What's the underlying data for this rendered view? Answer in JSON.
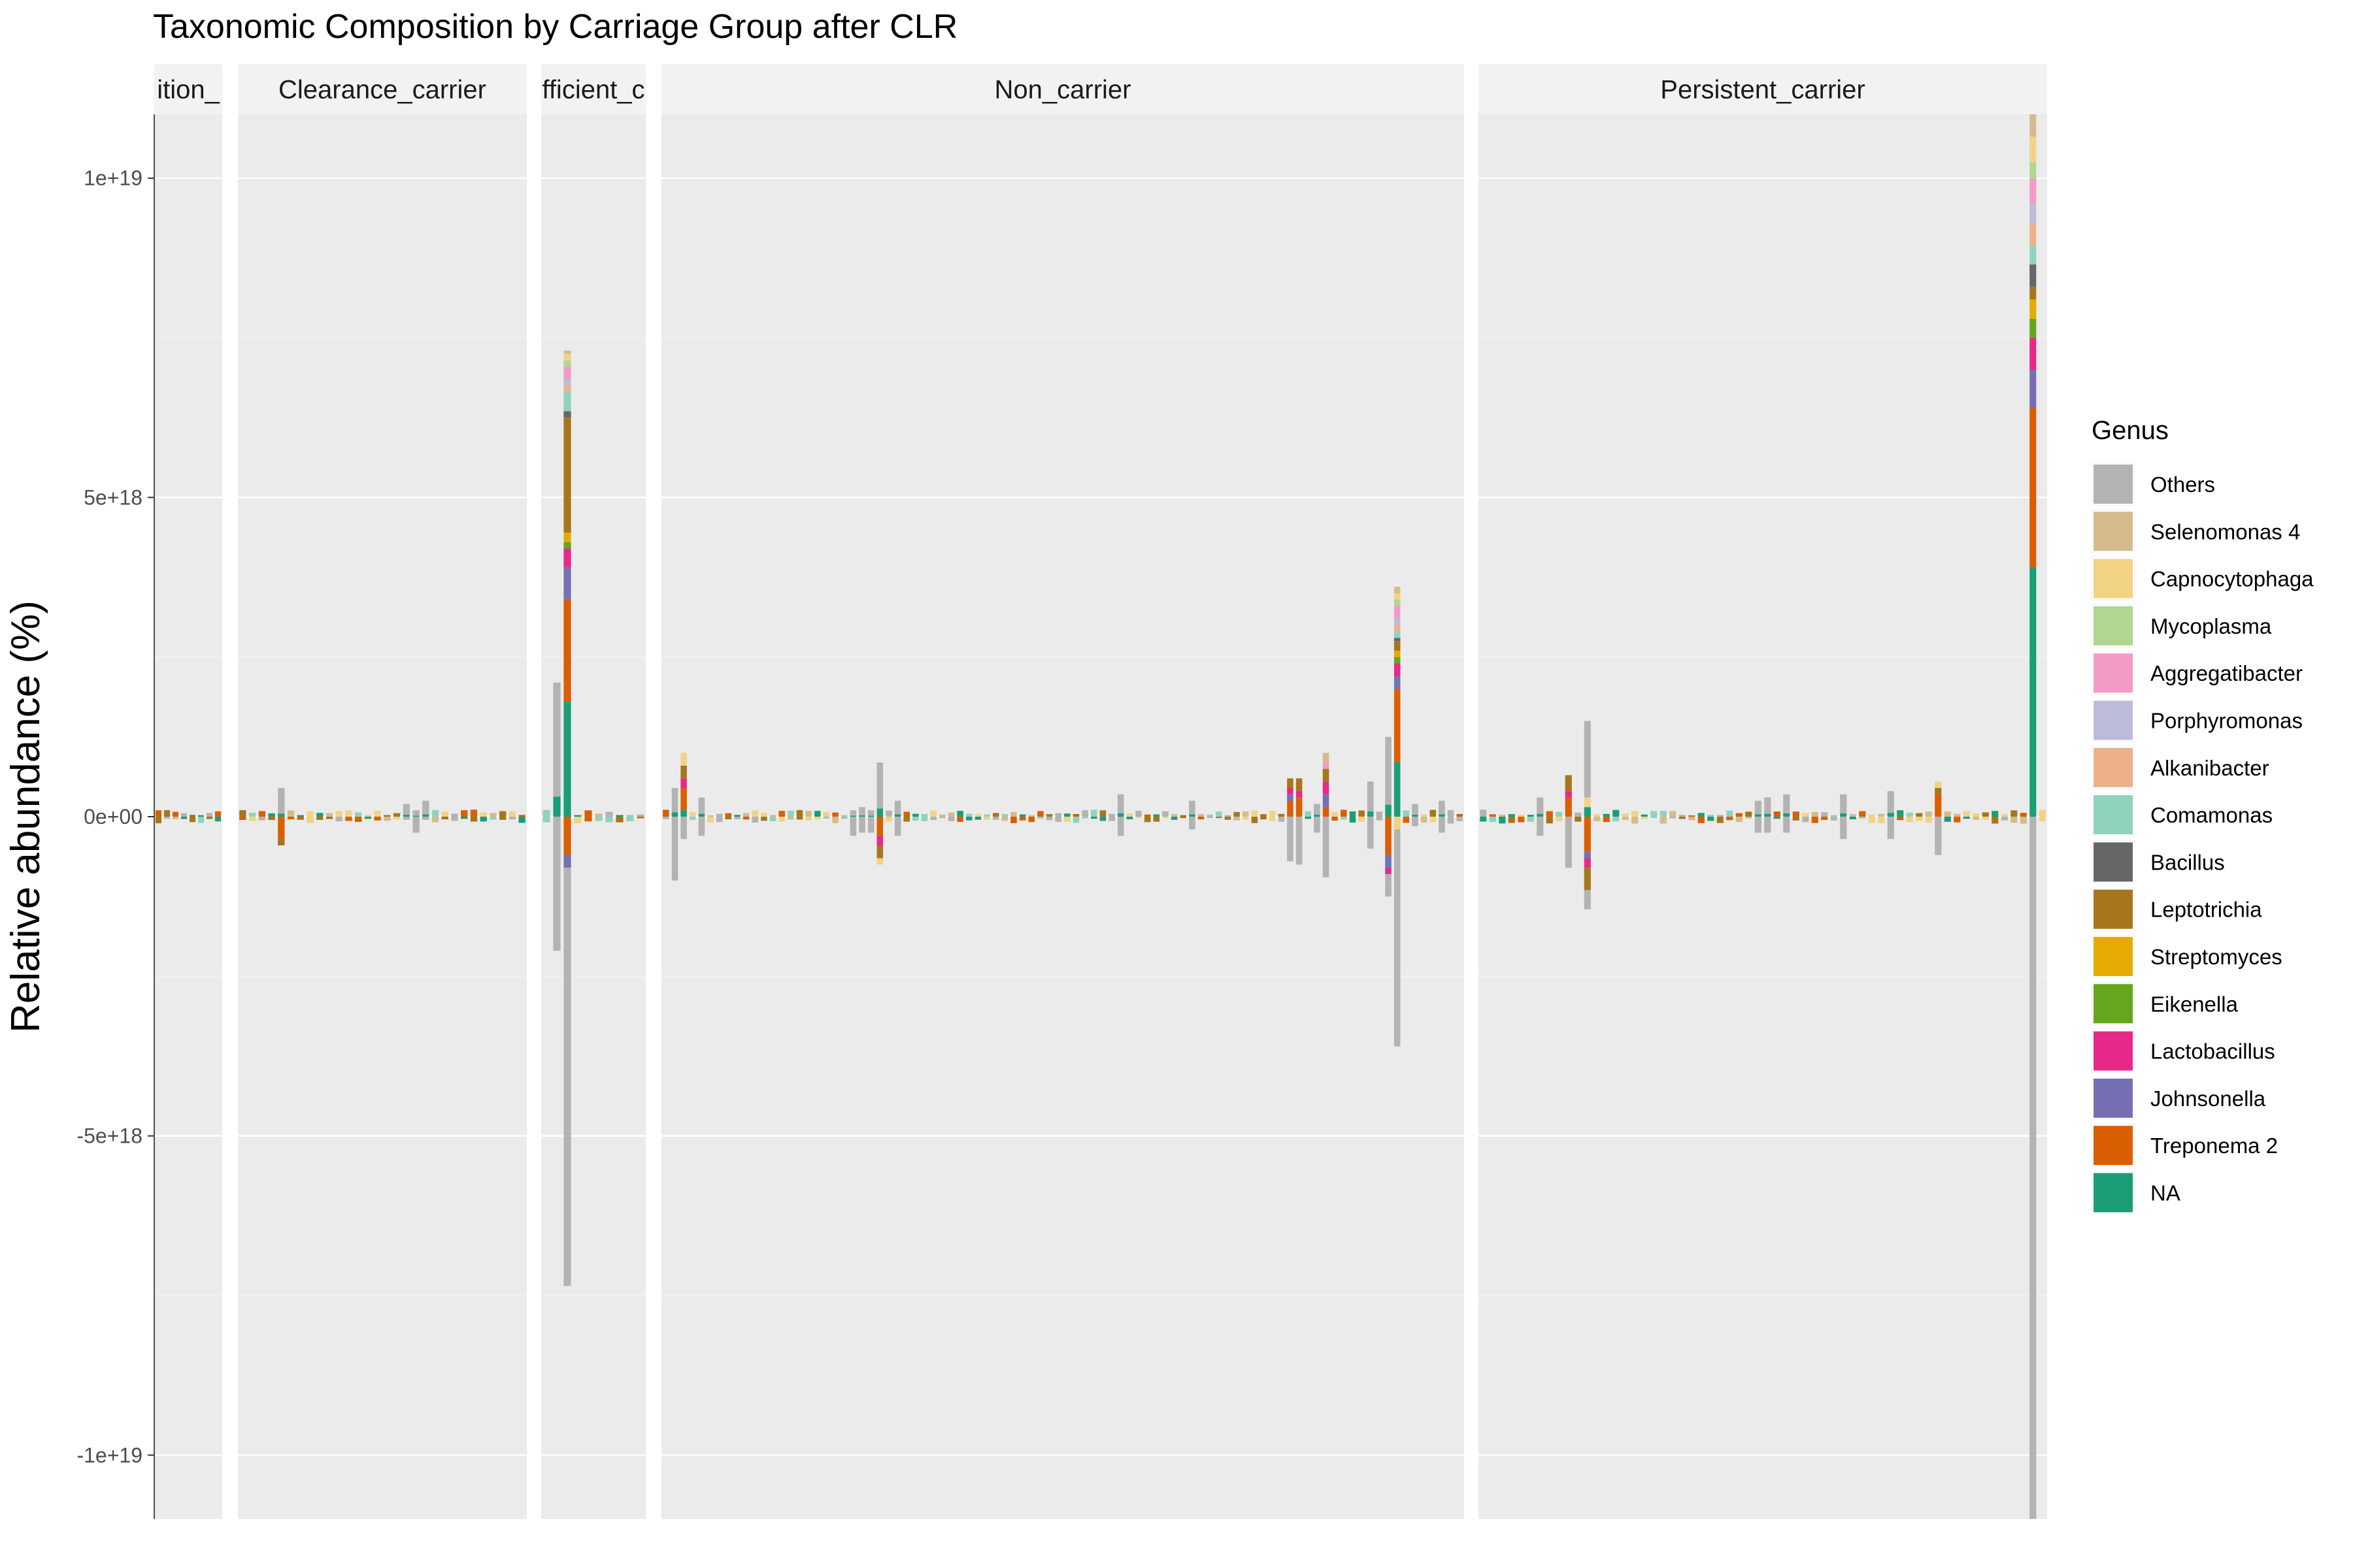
{
  "chart_data": {
    "type": "bar",
    "stacked": true,
    "title": "Taxonomic Composition by Carriage Group after CLR",
    "xlabel": "",
    "ylabel": "Relative abundance (%)",
    "ylim": [
      -1.1e+19,
      1.1e+19
    ],
    "y_ticks": [
      {
        "value": 1e+19,
        "label": "1e+19"
      },
      {
        "value": 5e+18,
        "label": "5e+18"
      },
      {
        "value": 0,
        "label": "0e+00"
      },
      {
        "value": -5e+18,
        "label": "-5e+18"
      },
      {
        "value": -1e+19,
        "label": "-1e+19"
      }
    ],
    "grid": true,
    "legend": {
      "position": "right",
      "title": "Genus",
      "entries": [
        {
          "name": "Others",
          "color": "#B3B3B3"
        },
        {
          "name": "Selenomonas 4",
          "color": "#D4BB8D"
        },
        {
          "name": "Capnocytophaga",
          "color": "#F2D384"
        },
        {
          "name": "Mycoplasma",
          "color": "#B3D593"
        },
        {
          "name": "Aggregatibacter",
          "color": "#F49AC7"
        },
        {
          "name": "Porphyromonas",
          "color": "#BDBBDA"
        },
        {
          "name": "Alkanibacter",
          "color": "#EEB088"
        },
        {
          "name": "Comamonas",
          "color": "#8FD3BF"
        },
        {
          "name": "Bacillus",
          "color": "#666666"
        },
        {
          "name": "Leptotrichia",
          "color": "#A6761D"
        },
        {
          "name": "Streptomyces",
          "color": "#E6AB02"
        },
        {
          "name": "Eikenella",
          "color": "#66A61E"
        },
        {
          "name": "Lactobacillus",
          "color": "#E7298A"
        },
        {
          "name": "Johnsonella",
          "color": "#7570B3"
        },
        {
          "name": "Treponema 2",
          "color": "#D95F02"
        },
        {
          "name": "NA",
          "color": "#1B9E77"
        }
      ]
    },
    "facets": [
      {
        "label": "Acquisition_carrier",
        "strip_text": "ition_",
        "n_samples": 8,
        "highlights": []
      },
      {
        "label": "Clearance_carrier",
        "strip_text": "Clearance_carrier",
        "n_samples": 30,
        "highlights": [
          {
            "index": 4,
            "pos": 4.5e+17,
            "neg": -4.5e+17,
            "pos_seg": {
              "NA": 5e+16,
              "Others": 4e+17
            },
            "neg_seg": {
              "Treponema 2": -3.5e+17,
              "Leptotrichia": -1e+17
            }
          },
          {
            "index": 17,
            "pos": 2e+17,
            "neg": -5e+16
          },
          {
            "index": 18,
            "pos": 1e+17,
            "neg": -2.5e+17
          },
          {
            "index": 19,
            "pos": 2.5e+17,
            "neg": -5e+16
          }
        ]
      },
      {
        "label": "Insufficient_carrier",
        "strip_text": "fficient_c",
        "n_samples": 10,
        "highlights": [
          {
            "index": 1,
            "pos": 2.1e+18,
            "neg": -2.1e+18
          },
          {
            "index": 2,
            "pos": 7.3e+18,
            "neg": -7.35e+18,
            "pos_seg": {
              "NA": 1.8e+18,
              "Treponema 2": 1.6e+18,
              "Johnsonella": 5e+17,
              "Lactobacillus": 3e+17,
              "Eikenella": 1e+17,
              "Streptomyces": 1.5e+17,
              "Leptotrichia": 1.8e+18,
              "Bacillus": 1e+17,
              "Comamonas": 3e+17,
              "Alkanibacter": 1e+17,
              "Porphyromonas": 1e+17,
              "Aggregatibacter": 2e+17,
              "Mycoplasma": 1e+17,
              "Capnocytophaga": 1e+17,
              "Selenomonas 4": 5e+16
            },
            "neg_seg": {
              "Treponema 2": -6e+17,
              "Johnsonella": -2e+17,
              "Others": -6.55e+18
            }
          }
        ]
      },
      {
        "label": "Non_carrier",
        "strip_text": "Non_carrier",
        "n_samples": 90,
        "highlights": [
          {
            "index": 1,
            "pos": 4.5e+17,
            "neg": -1e+18
          },
          {
            "index": 2,
            "pos": 1e+18,
            "neg": -3.5e+17,
            "pos_seg": {
              "NA": 1e+17,
              "Treponema 2": 3.5e+17,
              "Lactobacillus": 1.5e+17,
              "Leptotrichia": 2e+17,
              "Capnocytophaga": 2e+17
            }
          },
          {
            "index": 4,
            "pos": 3e+17,
            "neg": -3e+17
          },
          {
            "index": 21,
            "pos": 1e+17,
            "neg": -3e+17
          },
          {
            "index": 22,
            "pos": 1.5e+17,
            "neg": -2.5e+17
          },
          {
            "index": 23,
            "pos": 1e+17,
            "neg": -2.5e+17
          },
          {
            "index": 24,
            "pos": 8.5e+17,
            "neg": -8.5e+17,
            "neg_seg": {
              "Treponema 2": -3e+17,
              "Lactobacillus": -1.5e+17,
              "Leptotrichia": -2e+17,
              "Capnocytophaga": -1e+17
            }
          },
          {
            "index": 26,
            "pos": 2.5e+17,
            "neg": -3e+17
          },
          {
            "index": 51,
            "pos": 3.5e+17,
            "neg": -3e+17
          },
          {
            "index": 59,
            "pos": 2.5e+17,
            "neg": -2e+17
          },
          {
            "index": 70,
            "pos": 6e+17,
            "neg": -7e+17,
            "pos_seg": {
              "Treponema 2": 2.5e+17,
              "Leptotrichia": 1.5e+17,
              "Lactobacillus": 1e+17,
              "Johnsonella": 1e+17
            }
          },
          {
            "index": 71,
            "pos": 7e+17,
            "neg": -7.5e+17,
            "pos_seg": {
              "Treponema 2": 3e+17,
              "Leptotrichia": 2e+17,
              "Lactobacillus": 1e+17
            }
          },
          {
            "index": 73,
            "pos": 2e+17,
            "neg": -2.5e+17
          },
          {
            "index": 74,
            "pos": 1e+18,
            "neg": -9.5e+17,
            "pos_seg": {
              "Treponema 2": 1.5e+17,
              "Lactobacillus": 2e+17,
              "Johnsonella": 2e+17,
              "Leptotrichia": 2e+17,
              "Aggregatibacter": 1e+17,
              "Selenomonas 4": 1.5e+17
            }
          },
          {
            "index": 79,
            "pos": 5.5e+17,
            "neg": -5e+17
          },
          {
            "index": 81,
            "pos": 1.25e+18,
            "neg": -1.25e+18,
            "neg_seg": {
              "Treponema 2": -6e+17,
              "Johnsonella": -2e+17,
              "Lactobacillus": -1e+17,
              "Others": -3.5e+17
            }
          },
          {
            "index": 82,
            "pos": 3.6e+18,
            "neg": -3.6e+18,
            "pos_seg": {
              "NA": 8.5e+17,
              "Treponema 2": 1.15e+18,
              "Johnsonella": 2e+17,
              "Lactobacillus": 2e+17,
              "Eikenella": 1e+17,
              "Streptomyces": 1e+17,
              "Leptotrichia": 1.5e+17,
              "Bacillus": 5e+16,
              "Comamonas": 1e+17,
              "Alkanibacter": 1e+17,
              "Porphyromonas": 1e+17,
              "Aggregatibacter": 2e+17,
              "Mycoplasma": 1e+17,
              "Capnocytophaga": 1e+17,
              "Selenomonas 4": 1e+17
            },
            "neg_seg": {
              "Capnocytophaga": -2e+17,
              "Others": -3.4e+18
            }
          },
          {
            "index": 84,
            "pos": 2e+17,
            "neg": -1.5e+17
          },
          {
            "index": 87,
            "pos": 2.5e+17,
            "neg": -2.5e+17
          }
        ]
      },
      {
        "label": "Persistent_carrier",
        "strip_text": "Persistent_carrier",
        "n_samples": 60,
        "highlights": [
          {
            "index": 6,
            "pos": 3e+17,
            "neg": -3e+17
          },
          {
            "index": 9,
            "pos": 7.5e+17,
            "neg": -8e+17,
            "pos_seg": {
              "Treponema 2": 3e+17,
              "Leptotrichia": 2.5e+17,
              "Lactobacillus": 1e+17
            }
          },
          {
            "index": 11,
            "pos": 1.5e+18,
            "neg": -1.5e+18,
            "pos_seg": {
              "NA": 1.5e+17,
              "Capnocytophaga": 1.5e+17,
              "Others": 1.2e+18
            },
            "neg_seg": {
              "Treponema 2": -5.5e+17,
              "Lactobacillus": -1.5e+17,
              "Johnsonella": -1e+17,
              "Leptotrichia": -3.5e+17,
              "Others": -3e+17
            }
          },
          {
            "index": 29,
            "pos": 2.5e+17,
            "neg": -2.5e+17
          },
          {
            "index": 30,
            "pos": 3e+17,
            "neg": -2.5e+17
          },
          {
            "index": 32,
            "pos": 3.5e+17,
            "neg": -2.5e+17
          },
          {
            "index": 38,
            "pos": 3.5e+17,
            "neg": -3.5e+17
          },
          {
            "index": 43,
            "pos": 4e+17,
            "neg": -3.5e+17
          },
          {
            "index": 48,
            "pos": 5.5e+17,
            "neg": -6e+17,
            "pos_seg": {
              "Treponema 2": 3.5e+17,
              "Leptotrichia": 1e+17,
              "Capnocytophaga": 1e+17
            }
          },
          {
            "index": 58,
            "pos": 1.11e+19,
            "neg": -1.11e+19,
            "pos_seg": {
              "NA": 3.9e+18,
              "Treponema 2": 2.5e+18,
              "Johnsonella": 6e+17,
              "Lactobacillus": 5e+17,
              "Eikenella": 3e+17,
              "Streptomyces": 3e+17,
              "Leptotrichia": 2e+17,
              "Bacillus": 3.5e+17,
              "Comamonas": 3e+17,
              "Alkanibacter": 3.5e+17,
              "Porphyromonas": 3e+17,
              "Aggregatibacter": 4e+17,
              "Mycoplasma": 2.5e+17,
              "Capnocytophaga": 4e+17,
              "Selenomonas 4": 3.5e+17
            }
          }
        ]
      }
    ]
  }
}
